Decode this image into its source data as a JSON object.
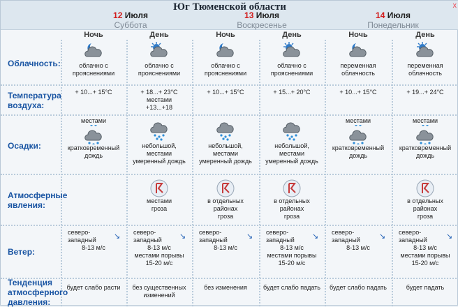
{
  "header": {
    "region": "Юг Тюменской области",
    "close_glyph": "x"
  },
  "days": [
    {
      "day_num": "12",
      "month": "Июля",
      "weekday": "Суббота"
    },
    {
      "day_num": "13",
      "month": "Июля",
      "weekday": "Воскресенье"
    },
    {
      "day_num": "14",
      "month": "Июля",
      "weekday": "Понедельник"
    }
  ],
  "time_of_day": {
    "night": "Ночь",
    "day": "День"
  },
  "rows": {
    "cloud": "Облачность:",
    "temp_1": "Температура",
    "temp_2": "воздуха:",
    "precip": "Осадки:",
    "atm_1": "Атмосферные",
    "atm_2": "явления:",
    "wind": "Ветер:",
    "press_1": "Тенденция",
    "press_2": "атмосферного",
    "press_3": "давления:"
  },
  "columns": [
    {
      "icon": "moon-cloud-icon",
      "cloud_1": "облачно с",
      "cloud_2": "прояснениями",
      "temp_1": "+ 10...+ 15°C",
      "temp_2": "",
      "precip_top": "местами",
      "precip_icon": "cloud-icon",
      "precip_1": "кратковременный",
      "precip_2": "дождь",
      "precip_3": "",
      "atm_icon": "",
      "atm_1": "",
      "atm_2": "",
      "atm_3": "",
      "wind_1": "северо-",
      "wind_2": "западный",
      "wind_3": "8-13 м/с",
      "wind_4": "",
      "wind_5": "",
      "wind_arrow": "↘",
      "press": "будет слабо расти",
      "press_2": ""
    },
    {
      "icon": "sun-cloud-icon",
      "cloud_1": "облачно с",
      "cloud_2": "прояснениями",
      "temp_1": "+ 18...+ 23°C",
      "temp_2": "местами",
      "temp_3": "+13...+18",
      "precip_top": "",
      "precip_icon": "rain-cloud-icon",
      "precip_1": "небольшой,",
      "precip_2": "местами",
      "precip_3": "умеренный дождь",
      "atm_icon": "thunder-icon",
      "atm_1": "местами",
      "atm_2": "гроза",
      "atm_3": "",
      "wind_1": "северо-",
      "wind_2": "западный",
      "wind_3": "8-13 м/с",
      "wind_4": "местами порывы",
      "wind_5": "15-20 м/с",
      "wind_arrow": "↘",
      "press": "без существенных",
      "press_2": "изменений"
    },
    {
      "icon": "moon-cloud-icon",
      "cloud_1": "облачно с",
      "cloud_2": "прояснениями",
      "temp_1": "+ 10...+ 15°C",
      "temp_2": "",
      "precip_top": "",
      "precip_icon": "rain-cloud-icon",
      "precip_1": "небольшой,",
      "precip_2": "местами",
      "precip_3": "умеренный дождь",
      "atm_icon": "thunder-icon",
      "atm_1": "в отдельных",
      "atm_2": "районах",
      "atm_3": "гроза",
      "wind_1": "северо-",
      "wind_2": "западный",
      "wind_3": "8-13 м/с",
      "wind_4": "",
      "wind_5": "",
      "wind_arrow": "↘",
      "press": "без изменения",
      "press_2": ""
    },
    {
      "icon": "sun-cloud-icon",
      "cloud_1": "облачно с",
      "cloud_2": "прояснениями",
      "temp_1": "+ 15...+ 20°C",
      "temp_2": "",
      "precip_top": "",
      "precip_icon": "rain-cloud-icon",
      "precip_1": "небольшой,",
      "precip_2": "местами",
      "precip_3": "умеренный дождь",
      "atm_icon": "thunder-icon",
      "atm_1": "в отдельных",
      "atm_2": "районах",
      "atm_3": "гроза",
      "wind_1": "северо-",
      "wind_2": "западный",
      "wind_3": "8-13 м/с",
      "wind_4": "местами порывы",
      "wind_5": "15-20 м/с",
      "wind_arrow": "↘",
      "press": "будет слабо падать",
      "press_2": ""
    },
    {
      "icon": "moon-cloud-icon",
      "cloud_1": "переменная",
      "cloud_2": "облачность",
      "temp_1": "+ 10...+ 15°C",
      "temp_2": "",
      "precip_top": "местами",
      "precip_icon": "cloud-icon",
      "precip_1": "кратковременный",
      "precip_2": "дождь",
      "precip_3": "",
      "atm_icon": "",
      "atm_1": "",
      "atm_2": "",
      "atm_3": "",
      "wind_1": "северо-",
      "wind_2": "западный",
      "wind_3": "8-13 м/с",
      "wind_4": "",
      "wind_5": "",
      "wind_arrow": "↘",
      "press": "будет слабо падать",
      "press_2": ""
    },
    {
      "icon": "sun-cloud-icon",
      "cloud_1": "переменная",
      "cloud_2": "облачность",
      "temp_1": "+ 19...+ 24°C",
      "temp_2": "",
      "precip_top": "местами",
      "precip_icon": "cloud-icon",
      "precip_1": "кратковременный",
      "precip_2": "дождь",
      "precip_3": "",
      "atm_icon": "thunder-icon",
      "atm_1": "в отдельных",
      "atm_2": "районах",
      "atm_3": "гроза",
      "wind_1": "северо-",
      "wind_2": "западный",
      "wind_3": "8-13 м/с",
      "wind_4": "местами порывы",
      "wind_5": "15-20 м/с",
      "wind_arrow": "↘",
      "press": "будет падать",
      "press_2": ""
    }
  ]
}
